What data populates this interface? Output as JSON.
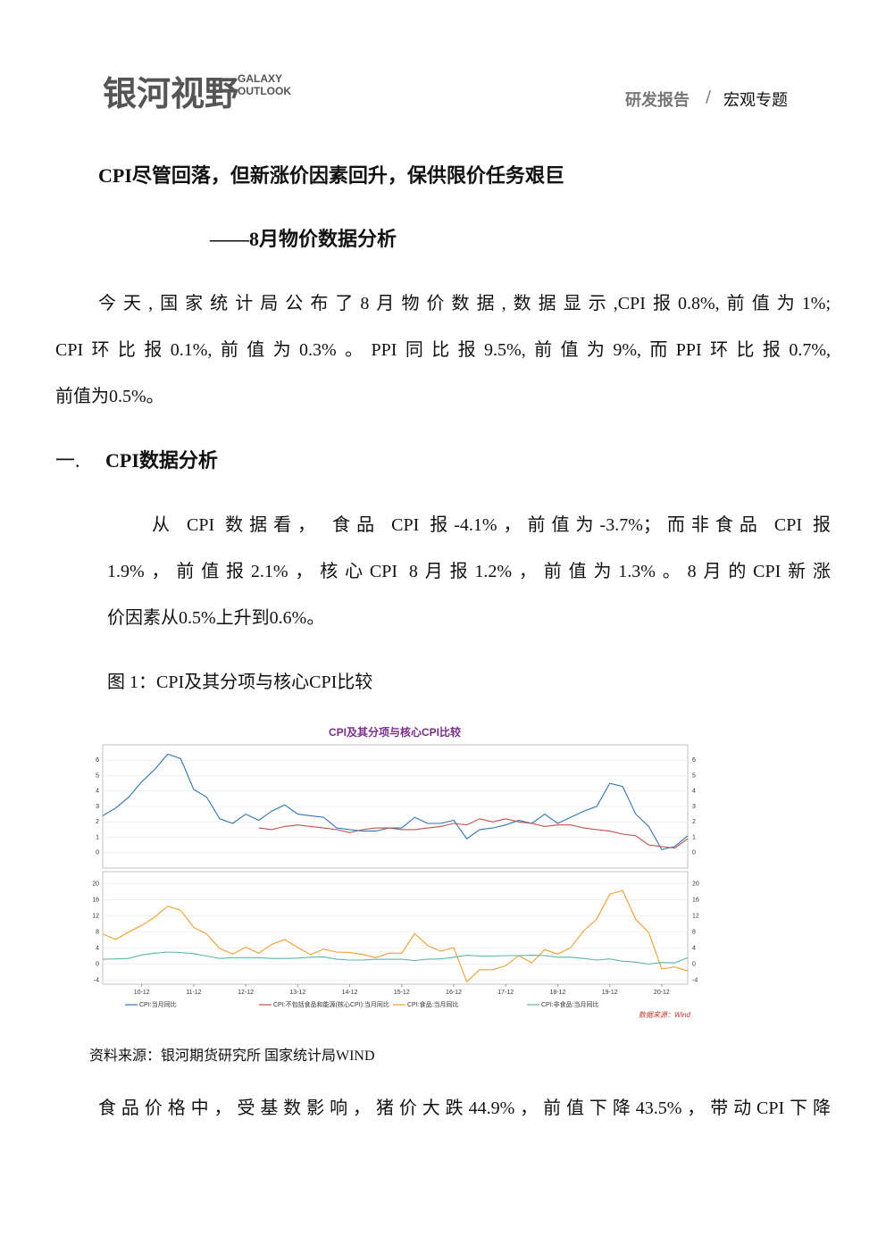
{
  "header": {
    "logo": "银河视野",
    "logo_en": [
      "GALAXY",
      "OUTLOOK"
    ],
    "breadcrumb": {
      "category": "研发报告",
      "separator": "/",
      "topic": "宏观专题"
    }
  },
  "title": "CPI尽管回落，但新涨价因素回升，保供限价任务艰巨",
  "subtitle": "——8月物价数据分析",
  "intro": {
    "lines": [
      "今天,国家统计局公布了8月物价数据,数据显示,CPI报0.8%,前值为1%;",
      "CPI环比报0.1%,前值为0.3%。PPI同比报9.5%,前值为9%,而PPI环比报0.7%,",
      "前值为0.5%。"
    ]
  },
  "section": {
    "number": "一.",
    "heading": "CPI数据分析",
    "lines": [
      "从 CPI 数据看， 食品 CPI 报-4.1%，前值为-3.7%；而非食品 CPI 报",
      "1.9%，前值报2.1%，核心CPI 8月报1.2%，前值为1.3%。8月的CPI新涨",
      "价因素从0.5%上升到0.6%。"
    ]
  },
  "figure": {
    "caption": "图 1：CPI及其分项与核心CPI比较",
    "chart": {
      "type": "line",
      "title": "CPI及其分项与核心CPI比较",
      "categories": [
        null,
        null,
        null,
        "10-12",
        null,
        null,
        null,
        "11-12",
        null,
        null,
        null,
        "12-12",
        null,
        null,
        null,
        "13-12",
        null,
        null,
        null,
        "14-12",
        null,
        null,
        null,
        "15-12",
        null,
        null,
        null,
        "16-12",
        null,
        null,
        null,
        "17-12",
        null,
        null,
        null,
        "18-12",
        null,
        null,
        null,
        "19-12",
        null,
        null,
        null,
        "20-12",
        null,
        null
      ],
      "panels": [
        {
          "ylim": [
            -1,
            7
          ],
          "yticks": [
            0,
            1,
            2,
            3,
            4,
            5,
            6
          ],
          "series": [
            {
              "name": "CPI:当月同比",
              "color": "#2e75b6",
              "values": [
                2.4,
                2.9,
                3.6,
                4.6,
                5.4,
                6.4,
                6.1,
                4.1,
                3.6,
                2.2,
                1.9,
                2.5,
                2.1,
                2.7,
                3.1,
                2.5,
                2.4,
                2.3,
                1.6,
                1.5,
                1.4,
                1.4,
                1.6,
                1.6,
                2.3,
                1.9,
                1.9,
                2.1,
                0.9,
                1.5,
                1.6,
                1.8,
                2.1,
                1.9,
                2.5,
                1.9,
                2.3,
                2.7,
                3.0,
                4.5,
                4.3,
                2.5,
                1.7,
                0.2,
                0.4,
                1.1
              ]
            },
            {
              "name": "CPI:不包括食品和能源(核心CPI):当月同比",
              "color": "#c0504d",
              "values": [
                null,
                null,
                null,
                null,
                null,
                null,
                null,
                null,
                null,
                null,
                null,
                null,
                1.6,
                1.5,
                1.7,
                1.8,
                1.7,
                1.6,
                1.5,
                1.3,
                1.5,
                1.6,
                1.6,
                1.5,
                1.5,
                1.6,
                1.7,
                1.9,
                1.8,
                2.2,
                2.0,
                2.2,
                2.0,
                1.9,
                1.7,
                1.8,
                1.8,
                1.6,
                1.5,
                1.4,
                1.2,
                1.1,
                0.5,
                0.4,
                0.3,
                0.9
              ]
            }
          ]
        },
        {
          "ylim": [
            -5,
            23
          ],
          "yticks": [
            -4,
            0,
            4,
            8,
            12,
            16,
            20
          ],
          "series": [
            {
              "name": "CPI:食品:当月同比",
              "color": "#f39c2a",
              "values": [
                7.5,
                6.1,
                8.0,
                9.6,
                11.7,
                14.4,
                13.4,
                9.1,
                7.5,
                3.9,
                2.5,
                4.2,
                2.7,
                4.9,
                6.1,
                4.1,
                2.4,
                3.7,
                3.0,
                2.9,
                2.4,
                1.6,
                2.7,
                2.7,
                7.6,
                4.6,
                3.2,
                4.1,
                -4.4,
                -1.4,
                -1.4,
                -0.4,
                2.1,
                0.3,
                3.6,
                2.5,
                4.1,
                8.3,
                11.2,
                17.4,
                18.3,
                11.1,
                7.9,
                -1.2,
                -0.7,
                -1.7
              ]
            },
            {
              "name": "CPI:非食品:当月同比",
              "color": "#5bb5a8",
              "values": [
                1.2,
                1.3,
                1.4,
                2.3,
                2.7,
                3.0,
                2.9,
                2.6,
                2.0,
                1.4,
                1.6,
                1.6,
                1.6,
                1.4,
                1.4,
                1.5,
                1.7,
                1.8,
                1.2,
                1.0,
                1.0,
                1.2,
                1.2,
                1.2,
                0.9,
                1.2,
                1.3,
                1.7,
                2.2,
                2.0,
                2.0,
                2.1,
                2.1,
                2.2,
                2.1,
                1.7,
                1.7,
                1.4,
                1.0,
                1.3,
                0.7,
                0.5,
                0.0,
                0.4,
                0.3,
                1.6
              ]
            }
          ]
        }
      ],
      "source_note": "数据来源：Wind"
    },
    "source": "资料来源：银河期货研究所 国家统计局WIND"
  },
  "closing": {
    "lines": [
      "食品价格中，受基数影响，猪价大跌44.9%，前值下降43.5%，带动CPI下降"
    ]
  }
}
